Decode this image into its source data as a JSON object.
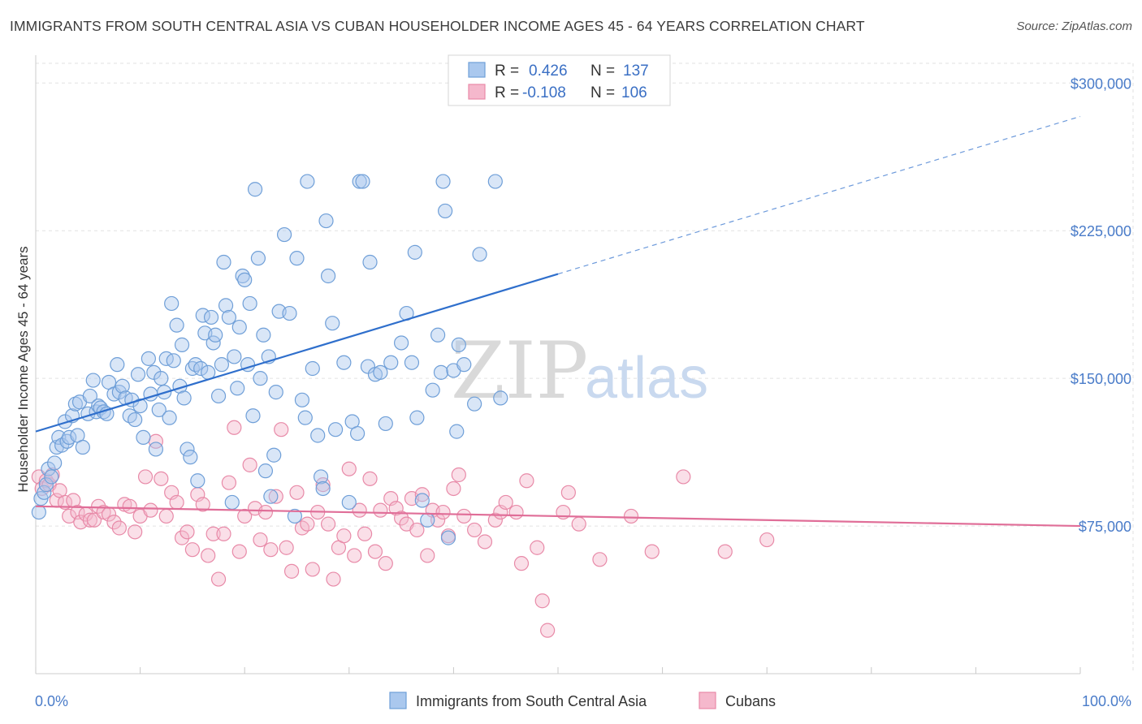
{
  "header": {
    "title": "IMMIGRANTS FROM SOUTH CENTRAL ASIA VS CUBAN HOUSEHOLDER INCOME AGES 45 - 64 YEARS CORRELATION CHART",
    "source": "Source: ZipAtlas.com"
  },
  "watermark": {
    "zip": "ZIP",
    "atlas": "atlas"
  },
  "legend": {
    "rows": [
      {
        "r_label": "R = ",
        "r_value": "0.426",
        "n_label": "N = ",
        "n_value": "137"
      },
      {
        "r_label": "R = ",
        "r_value": "-0.108",
        "n_label": "N = ",
        "n_value": "106"
      }
    ]
  },
  "colors": {
    "blue_fill": "#aac8ee",
    "blue_stroke": "#6f9fd8",
    "blue_line": "#2f6fcc",
    "pink_fill": "#f5b8cc",
    "pink_stroke": "#e88aa8",
    "pink_line": "#e06e98",
    "grid": "#e2e2e2",
    "axis_text": "#4a7cc9"
  },
  "chart_data": {
    "type": "scatter",
    "title": "IMMIGRANTS FROM SOUTH CENTRAL ASIA VS CUBAN HOUSEHOLDER INCOME AGES 45 - 64 YEARS CORRELATION CHART",
    "xlabel": "",
    "ylabel": "Householder Income Ages 45 - 64 years",
    "xlim": [
      0,
      100
    ],
    "ylim": [
      0,
      310000
    ],
    "x_tick_labels": [
      "0.0%",
      "100.0%"
    ],
    "y_ticks": [
      75000,
      150000,
      225000,
      300000
    ],
    "y_tick_labels": [
      "$75,000",
      "$150,000",
      "$225,000",
      "$300,000"
    ],
    "grid": true,
    "legend_position": "top-center",
    "series": [
      {
        "name": "Immigrants from South Central Asia",
        "r": 0.426,
        "n": 137,
        "trend": {
          "x0": 0,
          "y0": 123000,
          "x1": 50,
          "y1": 203000,
          "dashed_to_x": 100,
          "dashed_to_y": 283000
        },
        "points": [
          [
            0.3,
            82000
          ],
          [
            0.5,
            89000
          ],
          [
            0.8,
            92000
          ],
          [
            1.0,
            96000
          ],
          [
            1.2,
            104000
          ],
          [
            1.5,
            100000
          ],
          [
            1.8,
            107000
          ],
          [
            2.0,
            115000
          ],
          [
            2.2,
            120000
          ],
          [
            2.5,
            116000
          ],
          [
            2.8,
            128000
          ],
          [
            3.0,
            118000
          ],
          [
            3.2,
            120000
          ],
          [
            3.5,
            131000
          ],
          [
            3.8,
            137000
          ],
          [
            4.0,
            121000
          ],
          [
            4.2,
            138000
          ],
          [
            4.5,
            115000
          ],
          [
            5.0,
            132000
          ],
          [
            5.2,
            141000
          ],
          [
            5.5,
            149000
          ],
          [
            5.8,
            133000
          ],
          [
            6.0,
            136000
          ],
          [
            6.2,
            135000
          ],
          [
            6.5,
            133000
          ],
          [
            6.8,
            132000
          ],
          [
            7.0,
            148000
          ],
          [
            7.5,
            142000
          ],
          [
            7.8,
            157000
          ],
          [
            8.0,
            143000
          ],
          [
            8.3,
            146000
          ],
          [
            8.6,
            140000
          ],
          [
            9.0,
            131000
          ],
          [
            9.2,
            139000
          ],
          [
            9.5,
            129000
          ],
          [
            9.8,
            152000
          ],
          [
            10.0,
            136000
          ],
          [
            10.3,
            120000
          ],
          [
            10.8,
            160000
          ],
          [
            11.0,
            142000
          ],
          [
            11.3,
            153000
          ],
          [
            11.5,
            114000
          ],
          [
            11.8,
            134000
          ],
          [
            12.0,
            150000
          ],
          [
            12.3,
            143000
          ],
          [
            12.5,
            160000
          ],
          [
            12.8,
            130000
          ],
          [
            13.0,
            188000
          ],
          [
            13.2,
            159000
          ],
          [
            13.5,
            177000
          ],
          [
            13.8,
            146000
          ],
          [
            14.0,
            167000
          ],
          [
            14.2,
            140000
          ],
          [
            14.5,
            114000
          ],
          [
            14.8,
            110000
          ],
          [
            15.0,
            155000
          ],
          [
            15.3,
            157000
          ],
          [
            15.5,
            98000
          ],
          [
            15.8,
            155000
          ],
          [
            16.0,
            182000
          ],
          [
            16.2,
            173000
          ],
          [
            16.5,
            153000
          ],
          [
            16.8,
            181000
          ],
          [
            17.0,
            168000
          ],
          [
            17.2,
            172000
          ],
          [
            17.5,
            141000
          ],
          [
            17.8,
            157000
          ],
          [
            18.0,
            209000
          ],
          [
            18.2,
            187000
          ],
          [
            18.5,
            181000
          ],
          [
            18.8,
            87000
          ],
          [
            19.0,
            161000
          ],
          [
            19.3,
            145000
          ],
          [
            19.5,
            176000
          ],
          [
            19.8,
            202000
          ],
          [
            20.0,
            200000
          ],
          [
            20.3,
            157000
          ],
          [
            20.5,
            188000
          ],
          [
            20.8,
            131000
          ],
          [
            21.0,
            246000
          ],
          [
            21.3,
            211000
          ],
          [
            21.5,
            150000
          ],
          [
            21.8,
            172000
          ],
          [
            22.0,
            103000
          ],
          [
            22.3,
            161000
          ],
          [
            22.5,
            90000
          ],
          [
            22.8,
            111000
          ],
          [
            23.0,
            143000
          ],
          [
            23.3,
            184000
          ],
          [
            23.8,
            223000
          ],
          [
            24.3,
            183000
          ],
          [
            24.8,
            80000
          ],
          [
            25.0,
            211000
          ],
          [
            25.5,
            139000
          ],
          [
            25.8,
            130000
          ],
          [
            26.0,
            250000
          ],
          [
            26.5,
            155000
          ],
          [
            27.0,
            121000
          ],
          [
            27.3,
            100000
          ],
          [
            27.5,
            94000
          ],
          [
            27.8,
            230000
          ],
          [
            28.0,
            202000
          ],
          [
            28.4,
            178000
          ],
          [
            28.7,
            124000
          ],
          [
            29.5,
            158000
          ],
          [
            30.0,
            87000
          ],
          [
            30.3,
            128000
          ],
          [
            30.8,
            122000
          ],
          [
            31.0,
            250000
          ],
          [
            31.3,
            250000
          ],
          [
            31.8,
            156000
          ],
          [
            32.0,
            209000
          ],
          [
            32.5,
            152000
          ],
          [
            33.0,
            153000
          ],
          [
            33.5,
            127000
          ],
          [
            34.0,
            158000
          ],
          [
            35.0,
            168000
          ],
          [
            35.5,
            183000
          ],
          [
            36.0,
            158000
          ],
          [
            36.3,
            214000
          ],
          [
            36.5,
            130000
          ],
          [
            37.0,
            88000
          ],
          [
            37.5,
            78000
          ],
          [
            38.0,
            144000
          ],
          [
            38.5,
            172000
          ],
          [
            38.8,
            153000
          ],
          [
            39.0,
            250000
          ],
          [
            39.2,
            235000
          ],
          [
            39.5,
            69000
          ],
          [
            40.0,
            154000
          ],
          [
            40.3,
            123000
          ],
          [
            40.5,
            167000
          ],
          [
            41.0,
            157000
          ],
          [
            42.0,
            137000
          ],
          [
            42.5,
            213000
          ],
          [
            44.0,
            250000
          ],
          [
            44.5,
            140000
          ]
        ]
      },
      {
        "name": "Cubans",
        "r": -0.108,
        "n": 106,
        "trend": {
          "x0": 0,
          "y0": 85000,
          "x1": 100,
          "y1": 75000
        },
        "points": [
          [
            0.3,
            100000
          ],
          [
            0.6,
            94000
          ],
          [
            1.0,
            98000
          ],
          [
            1.3,
            96000
          ],
          [
            1.6,
            101000
          ],
          [
            2.0,
            88000
          ],
          [
            2.3,
            93000
          ],
          [
            2.8,
            87000
          ],
          [
            3.2,
            80000
          ],
          [
            3.6,
            88000
          ],
          [
            4.0,
            82000
          ],
          [
            4.3,
            77000
          ],
          [
            4.8,
            81000
          ],
          [
            5.2,
            78000
          ],
          [
            5.6,
            78000
          ],
          [
            6.0,
            85000
          ],
          [
            6.5,
            82000
          ],
          [
            7.0,
            81000
          ],
          [
            7.5,
            77000
          ],
          [
            8.0,
            74000
          ],
          [
            8.5,
            86000
          ],
          [
            9.0,
            85000
          ],
          [
            9.5,
            72000
          ],
          [
            10.0,
            80000
          ],
          [
            10.5,
            100000
          ],
          [
            11.0,
            83000
          ],
          [
            11.5,
            118000
          ],
          [
            12.0,
            99000
          ],
          [
            12.5,
            80000
          ],
          [
            13.0,
            92000
          ],
          [
            13.5,
            87000
          ],
          [
            14.0,
            69000
          ],
          [
            14.5,
            72000
          ],
          [
            15.0,
            63000
          ],
          [
            15.5,
            91000
          ],
          [
            16.0,
            86000
          ],
          [
            16.5,
            60000
          ],
          [
            17.0,
            71000
          ],
          [
            17.5,
            48000
          ],
          [
            18.0,
            71000
          ],
          [
            18.5,
            97000
          ],
          [
            19.0,
            125000
          ],
          [
            19.5,
            62000
          ],
          [
            20.0,
            80000
          ],
          [
            20.5,
            106000
          ],
          [
            21.0,
            84000
          ],
          [
            21.5,
            68000
          ],
          [
            22.0,
            82000
          ],
          [
            22.5,
            63000
          ],
          [
            23.0,
            90000
          ],
          [
            23.5,
            124000
          ],
          [
            24.0,
            64000
          ],
          [
            24.5,
            52000
          ],
          [
            25.0,
            92000
          ],
          [
            25.5,
            74000
          ],
          [
            26.0,
            76000
          ],
          [
            26.5,
            53000
          ],
          [
            27.0,
            82000
          ],
          [
            27.5,
            96000
          ],
          [
            28.0,
            76000
          ],
          [
            28.5,
            48000
          ],
          [
            29.0,
            64000
          ],
          [
            29.5,
            70000
          ],
          [
            30.0,
            104000
          ],
          [
            30.5,
            60000
          ],
          [
            31.0,
            83000
          ],
          [
            31.5,
            71000
          ],
          [
            32.0,
            99000
          ],
          [
            32.5,
            62000
          ],
          [
            33.0,
            83000
          ],
          [
            33.5,
            56000
          ],
          [
            34.0,
            89000
          ],
          [
            34.5,
            84000
          ],
          [
            35.0,
            79000
          ],
          [
            35.5,
            76000
          ],
          [
            36.0,
            89000
          ],
          [
            36.5,
            73000
          ],
          [
            37.0,
            91000
          ],
          [
            37.5,
            60000
          ],
          [
            38.0,
            83000
          ],
          [
            38.5,
            78000
          ],
          [
            39.0,
            82000
          ],
          [
            39.5,
            70000
          ],
          [
            40.0,
            94000
          ],
          [
            40.5,
            101000
          ],
          [
            41.0,
            80000
          ],
          [
            42.0,
            73000
          ],
          [
            43.0,
            67000
          ],
          [
            44.0,
            78000
          ],
          [
            44.5,
            82000
          ],
          [
            45.0,
            87000
          ],
          [
            46.0,
            82000
          ],
          [
            46.5,
            56000
          ],
          [
            47.0,
            98000
          ],
          [
            48.0,
            64000
          ],
          [
            48.5,
            37000
          ],
          [
            49.0,
            22000
          ],
          [
            50.5,
            82000
          ],
          [
            51.0,
            92000
          ],
          [
            52.0,
            76000
          ],
          [
            54.0,
            58000
          ],
          [
            57.0,
            80000
          ],
          [
            59.0,
            62000
          ],
          [
            62.0,
            100000
          ],
          [
            66.0,
            62000
          ],
          [
            70.0,
            68000
          ]
        ]
      }
    ]
  },
  "bottom_legend": {
    "items": [
      {
        "label": "Immigrants from South Central Asia"
      },
      {
        "label": "Cubans"
      }
    ]
  },
  "axes": {
    "ylabel": "Householder Income Ages 45 - 64 years",
    "x_left": "0.0%",
    "x_right": "100.0%",
    "y_labels": [
      "$75,000",
      "$150,000",
      "$225,000",
      "$300,000"
    ]
  }
}
